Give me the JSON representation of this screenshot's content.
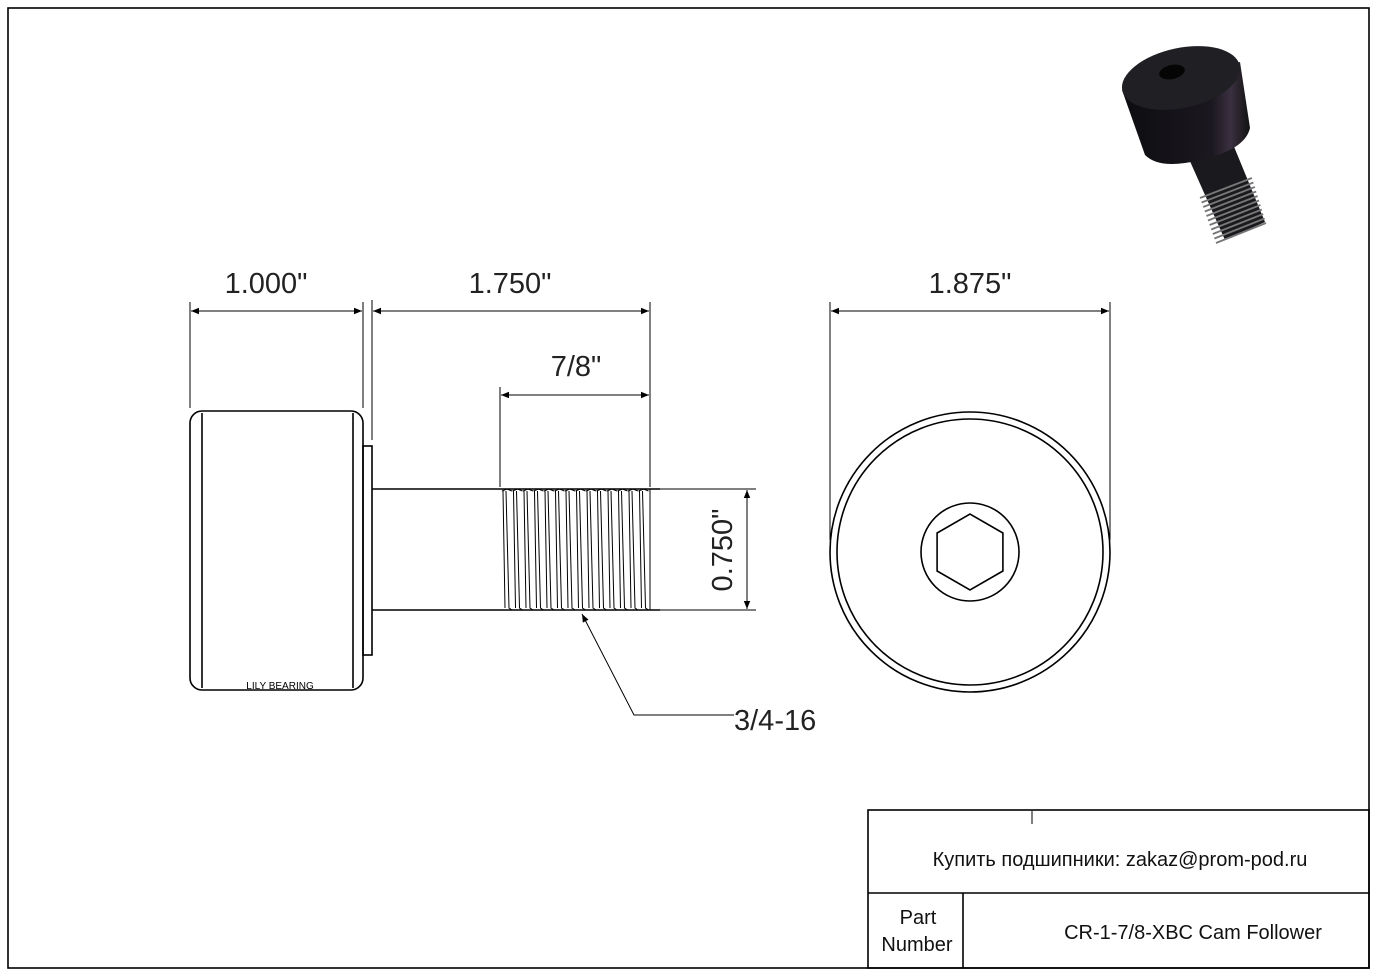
{
  "drawing": {
    "dimensions": {
      "roller_width": "1.000\"",
      "stud_length": "1.750\"",
      "thread_length": "7/8\"",
      "stud_diameter": "0.750\"",
      "roller_diameter": "1.875\"",
      "thread_spec": "3/4-16"
    },
    "roller_marking": "LILY BEARING"
  },
  "title_block": {
    "contact": "Купить подшипники: zakaz@prom-pod.ru",
    "part_label_line1": "Part",
    "part_label_line2": "Number",
    "part_number": "CR-1-7/8-XBC Cam Follower"
  }
}
